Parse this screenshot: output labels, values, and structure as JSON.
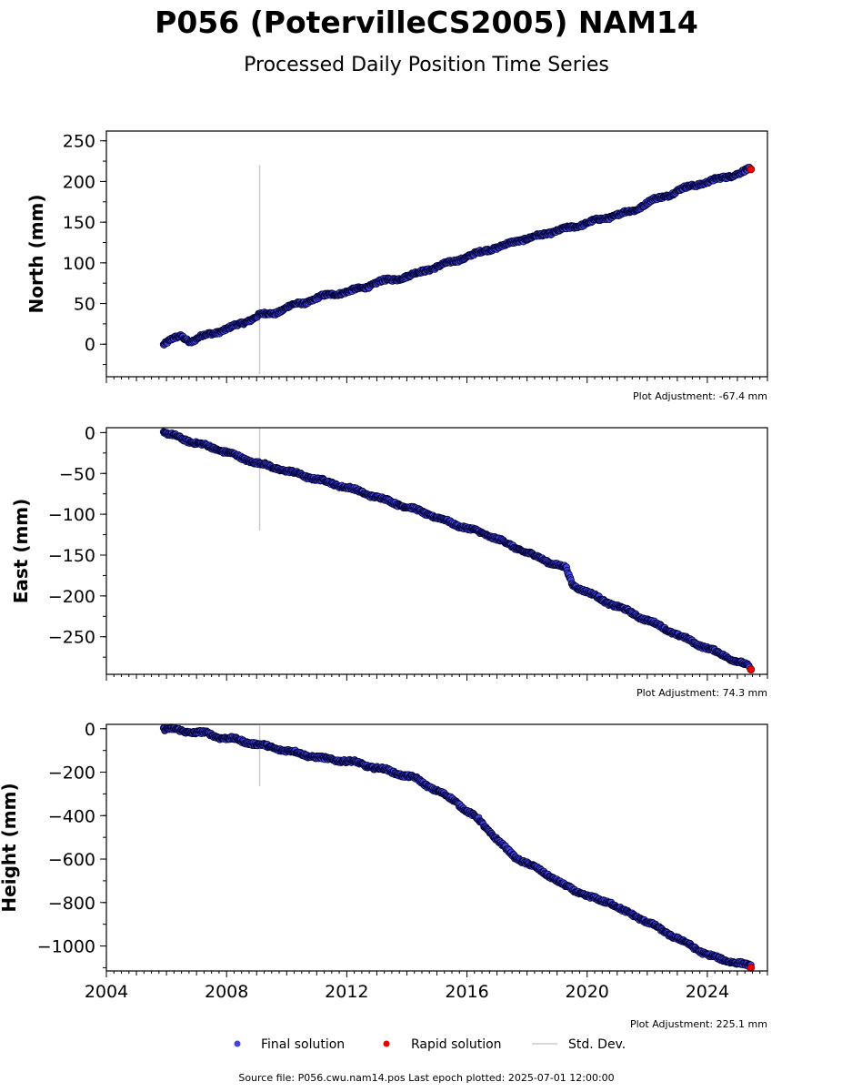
{
  "header": {
    "title": "P056 (PotervilleCS2005) NAM14",
    "subtitle": "Processed Daily Position Time Series"
  },
  "footer": {
    "source": "Source file: P056.cwu.nam14.pos  Last epoch plotted: 2025-07-01 12:00:00"
  },
  "legend": {
    "items": [
      {
        "label": "Final solution",
        "color": "#4444dd"
      },
      {
        "label": "Rapid solution",
        "color": "#ee0000"
      },
      {
        "label": "Std. Dev.",
        "color": "#cccccc"
      }
    ]
  },
  "colors": {
    "final_fill": "#4444dd",
    "final_edge": "#000033",
    "rapid_fill": "#ee0000",
    "std_dev": "#cccccc"
  },
  "chart_data": [
    {
      "type": "scatter",
      "ylabel": "North (mm)",
      "adjustment": "Plot Adjustment: -67.4 mm",
      "xlim": [
        2004,
        2026
      ],
      "ylim": [
        -40,
        262
      ],
      "yticks": [
        0,
        50,
        100,
        150,
        200,
        250
      ],
      "ytick_labels": [
        "0",
        "50",
        "100",
        "150",
        "200",
        "250"
      ],
      "xticks": [
        2004,
        2008,
        2012,
        2016,
        2020,
        2024
      ],
      "xtick_labels": [],
      "std_dev_bar": {
        "x": 2009.1,
        "y_low": -37,
        "y_high": 220
      },
      "series": [
        {
          "name": "Final solution",
          "x": [
            2005.9,
            2006.2,
            2006.5,
            2006.8,
            2007.2,
            2007.6,
            2008.1,
            2008.6,
            2009.1,
            2009.6,
            2010.1,
            2010.6,
            2011.1,
            2011.6,
            2012.1,
            2012.6,
            2013.1,
            2013.6,
            2014.1,
            2014.6,
            2015.1,
            2015.6,
            2016.1,
            2016.6,
            2017.1,
            2017.6,
            2018.1,
            2018.6,
            2019.1,
            2019.6,
            2020.1,
            2020.6,
            2021.1,
            2021.6,
            2022.1,
            2022.6,
            2023.1,
            2023.6,
            2024.1,
            2024.6,
            2025.1,
            2025.4
          ],
          "y": [
            0,
            6,
            10,
            3,
            10,
            14,
            20,
            27,
            36,
            38,
            47,
            51,
            58,
            62,
            65,
            70,
            77,
            80,
            84,
            91,
            96,
            103,
            108,
            116,
            119,
            127,
            130,
            136,
            140,
            145,
            150,
            155,
            160,
            165,
            176,
            182,
            190,
            196,
            200,
            206,
            210,
            215
          ]
        },
        {
          "name": "Rapid solution",
          "x": [
            2025.45
          ],
          "y": [
            215
          ]
        }
      ]
    },
    {
      "type": "scatter",
      "ylabel": "East (mm)",
      "adjustment": "Plot Adjustment: 74.3 mm",
      "xlim": [
        2004,
        2026
      ],
      "ylim": [
        -296,
        6
      ],
      "yticks": [
        0,
        -50,
        -100,
        -150,
        -200,
        -250
      ],
      "ytick_labels": [
        "0",
        "−50",
        "−100",
        "−150",
        "−200",
        "−250"
      ],
      "xticks": [
        2004,
        2008,
        2012,
        2016,
        2020,
        2024
      ],
      "xtick_labels": [],
      "std_dev_bar": {
        "x": 2009.1,
        "y_low": -120,
        "y_high": 5
      },
      "series": [
        {
          "name": "Final solution",
          "x": [
            2005.9,
            2006.5,
            2007.0,
            2007.5,
            2008.0,
            2008.5,
            2009.0,
            2009.5,
            2010.0,
            2010.5,
            2011.0,
            2011.5,
            2012.0,
            2012.5,
            2013.0,
            2013.5,
            2014.0,
            2014.5,
            2015.0,
            2015.5,
            2016.0,
            2016.5,
            2017.0,
            2017.5,
            2018.0,
            2018.5,
            2019.0,
            2019.3,
            2019.5,
            2020.0,
            2020.5,
            2021.0,
            2021.5,
            2022.0,
            2022.5,
            2023.0,
            2023.5,
            2024.0,
            2024.5,
            2025.0,
            2025.4
          ],
          "y": [
            0,
            -7,
            -13,
            -18,
            -24,
            -31,
            -37,
            -42,
            -47,
            -52,
            -57,
            -62,
            -67,
            -73,
            -79,
            -85,
            -91,
            -97,
            -104,
            -111,
            -117,
            -123,
            -130,
            -139,
            -147,
            -155,
            -162,
            -166,
            -186,
            -195,
            -205,
            -213,
            -221,
            -230,
            -238,
            -248,
            -256,
            -264,
            -272,
            -280,
            -287
          ]
        },
        {
          "name": "Rapid solution",
          "x": [
            2025.45
          ],
          "y": [
            -290
          ]
        }
      ]
    },
    {
      "type": "scatter",
      "ylabel": "Height (mm)",
      "adjustment": "Plot Adjustment: 225.1 mm",
      "xlim": [
        2004,
        2026
      ],
      "ylim": [
        -1115,
        20
      ],
      "yticks": [
        0,
        -200,
        -400,
        -600,
        -800,
        -1000
      ],
      "ytick_labels": [
        "0",
        "−200",
        "−400",
        "−600",
        "−800",
        "−1000"
      ],
      "xticks": [
        2004,
        2008,
        2012,
        2016,
        2020,
        2024
      ],
      "xtick_labels": [
        "2004",
        "2008",
        "2012",
        "2016",
        "2020",
        "2024"
      ],
      "std_dev_bar": {
        "x": 2009.1,
        "y_low": -265,
        "y_high": 15
      },
      "series": [
        {
          "name": "Final solution",
          "x": [
            2005.9,
            2006.3,
            2006.8,
            2007.3,
            2007.8,
            2008.3,
            2008.8,
            2009.3,
            2009.8,
            2010.3,
            2010.8,
            2011.3,
            2011.8,
            2012.3,
            2012.8,
            2013.3,
            2013.8,
            2014.3,
            2014.8,
            2015.3,
            2015.6,
            2016.0,
            2016.4,
            2016.8,
            2017.2,
            2017.6,
            2018.0,
            2018.4,
            2018.8,
            2019.2,
            2019.6,
            2020.0,
            2020.4,
            2020.8,
            2021.2,
            2021.6,
            2022.0,
            2022.4,
            2022.8,
            2023.2,
            2023.6,
            2024.0,
            2024.4,
            2024.8,
            2025.2,
            2025.45
          ],
          "y": [
            0,
            -5,
            -15,
            -20,
            -40,
            -50,
            -65,
            -80,
            -95,
            -110,
            -125,
            -140,
            -145,
            -155,
            -175,
            -190,
            -210,
            -230,
            -270,
            -310,
            -330,
            -380,
            -420,
            -480,
            -540,
            -590,
            -620,
            -650,
            -680,
            -720,
            -745,
            -770,
            -790,
            -800,
            -840,
            -860,
            -890,
            -920,
            -950,
            -980,
            -1010,
            -1040,
            -1060,
            -1070,
            -1085,
            -1095
          ]
        },
        {
          "name": "Rapid solution",
          "x": [
            2025.45
          ],
          "y": [
            -1100
          ]
        }
      ]
    }
  ]
}
